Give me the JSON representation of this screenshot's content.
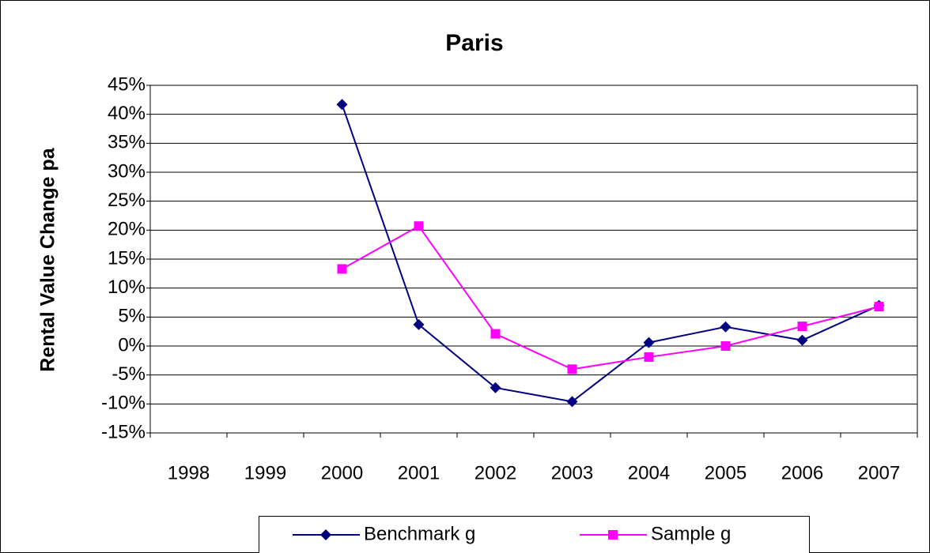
{
  "chart_data": {
    "type": "line",
    "title": "Paris",
    "y_label": "Rental Value Change pa",
    "categories": [
      "1998",
      "1999",
      "2000",
      "2001",
      "2002",
      "2003",
      "2004",
      "2005",
      "2006",
      "2007"
    ],
    "series": [
      {
        "name": "Benchmark g",
        "color": "#000080",
        "marker": "diamond",
        "values": [
          null,
          null,
          41.7,
          3.7,
          -7.2,
          -9.6,
          0.6,
          3.3,
          1.0,
          7.0
        ]
      },
      {
        "name": "Sample g",
        "color": "#ff00ff",
        "marker": "square",
        "values": [
          null,
          null,
          13.3,
          20.7,
          2.1,
          -4.0,
          -1.9,
          0.0,
          3.4,
          6.8
        ]
      }
    ],
    "ylim": [
      -15,
      45
    ],
    "yticks": [
      {
        "value": -15,
        "label": "-15%"
      },
      {
        "value": -10,
        "label": "-10%"
      },
      {
        "value": -5,
        "label": "-5%"
      },
      {
        "value": 0,
        "label": "0%"
      },
      {
        "value": 5,
        "label": "5%"
      },
      {
        "value": 10,
        "label": "10%"
      },
      {
        "value": 15,
        "label": "15%"
      },
      {
        "value": 20,
        "label": "20%"
      },
      {
        "value": 25,
        "label": "25%"
      },
      {
        "value": 30,
        "label": "30%"
      },
      {
        "value": 35,
        "label": "35%"
      },
      {
        "value": 40,
        "label": "40%"
      },
      {
        "value": 45,
        "label": "45%"
      }
    ],
    "grid": true,
    "legend": "bottom"
  }
}
